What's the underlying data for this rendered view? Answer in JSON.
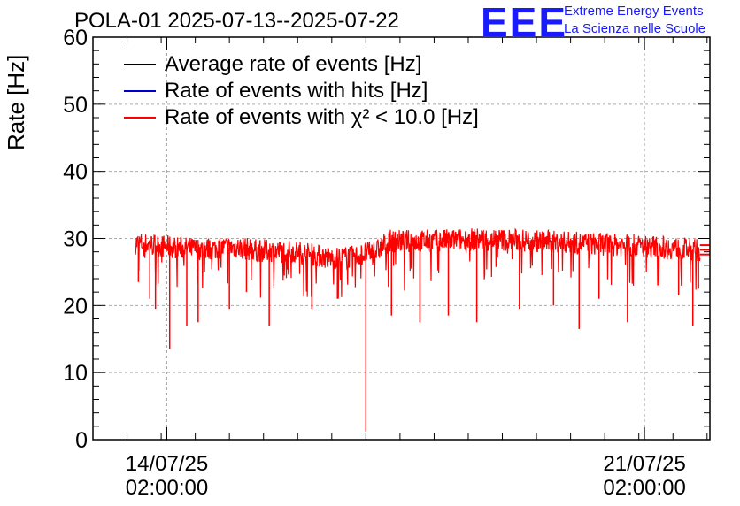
{
  "title": "POLA-01 2025-07-13--2025-07-22",
  "logo": {
    "mark": "EEE",
    "line1": "Extreme Energy Events",
    "line2": "La Scienza nelle Scuole"
  },
  "colors": {
    "average": "#000000",
    "hits": "#0000cc",
    "chi2": "#ff0000",
    "logo": "#1a1aff"
  },
  "chart_data": {
    "type": "line",
    "ylabel": "Rate [Hz]",
    "xlabel": "",
    "ylim": [
      0,
      60
    ],
    "yticks": [
      0,
      10,
      20,
      30,
      40,
      50,
      60
    ],
    "xlim": [
      "2025-07-13 00:00",
      "2025-07-22 01:00"
    ],
    "xticks": [
      {
        "date": "2025-07-14 02:00",
        "line1": "14/07/25",
        "line2": "02:00:00"
      },
      {
        "date": "2025-07-21 02:00",
        "line1": "21/07/25",
        "line2": "02:00:00"
      }
    ],
    "grid": true,
    "legend_position": "top-left",
    "series": [
      {
        "name": "Average rate of events [Hz]",
        "color": "#000000"
      },
      {
        "name": "Rate of events with hits [Hz]",
        "color": "#0000cc"
      },
      {
        "name": "Rate of events with χ² < 10.0 [Hz]",
        "color": "#ff0000",
        "baseline": [
          [
            "2025-07-13 15:00",
            29.3
          ],
          [
            "2025-07-14 06:00",
            28.6
          ],
          [
            "2025-07-14 14:00",
            28.4
          ],
          [
            "2025-07-15 02:00",
            28.7
          ],
          [
            "2025-07-15 10:00",
            28.2
          ],
          [
            "2025-07-16 00:00",
            28.0
          ],
          [
            "2025-07-16 12:00",
            27.0
          ],
          [
            "2025-07-16 20:00",
            27.3
          ],
          [
            "2025-07-17 04:00",
            28.2
          ],
          [
            "2025-07-17 08:00",
            29.6
          ],
          [
            "2025-07-17 22:00",
            29.6
          ],
          [
            "2025-07-18 18:00",
            29.9
          ],
          [
            "2025-07-19 12:00",
            29.6
          ],
          [
            "2025-07-20 08:00",
            29.2
          ],
          [
            "2025-07-21 04:00",
            28.8
          ],
          [
            "2025-07-21 20:00",
            28.3
          ],
          [
            "2025-07-22 01:00",
            28.0
          ]
        ],
        "dips": [
          [
            "2025-07-13 16:00",
            23.5
          ],
          [
            "2025-07-13 20:00",
            21.0
          ],
          [
            "2025-07-13 22:00",
            19.5
          ],
          [
            "2025-07-14 03:00",
            13.5
          ],
          [
            "2025-07-14 09:00",
            17.0
          ],
          [
            "2025-07-14 13:00",
            17.5
          ],
          [
            "2025-07-15 00:00",
            19.5
          ],
          [
            "2025-07-15 06:00",
            22.0
          ],
          [
            "2025-07-15 14:00",
            17.0
          ],
          [
            "2025-07-16 05:00",
            19.5
          ],
          [
            "2025-07-16 14:00",
            21.0
          ],
          [
            "2025-07-17 00:00",
            1.2
          ],
          [
            "2025-07-17 09:00",
            18.5
          ],
          [
            "2025-07-17 19:00",
            17.5
          ],
          [
            "2025-07-18 05:00",
            18.5
          ],
          [
            "2025-07-18 15:00",
            17.5
          ],
          [
            "2025-07-19 06:00",
            19.5
          ],
          [
            "2025-07-19 18:00",
            20.0
          ],
          [
            "2025-07-20 03:00",
            16.5
          ],
          [
            "2025-07-20 10:00",
            21.0
          ],
          [
            "2025-07-20 20:00",
            17.5
          ],
          [
            "2025-07-21 14:00",
            21.5
          ],
          [
            "2025-07-21 19:00",
            17.0
          ],
          [
            "2025-07-21 21:00",
            22.5
          ]
        ],
        "tail": {
          "from": "2025-07-21 21:30",
          "levels": [
            29.0,
            28.3,
            27.6
          ]
        }
      }
    ]
  }
}
